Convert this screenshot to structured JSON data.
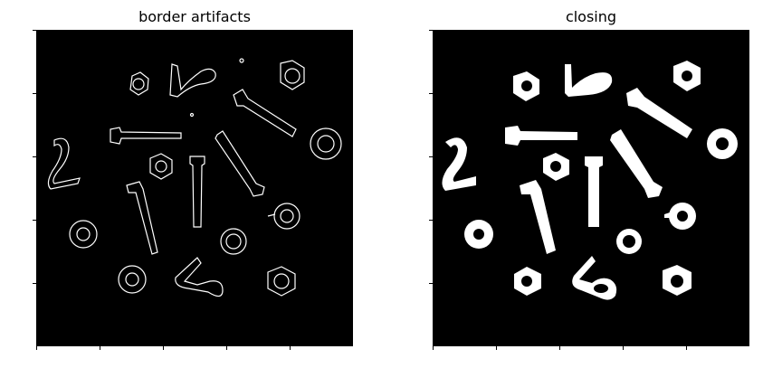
{
  "panels": [
    {
      "title": "border artifacts"
    },
    {
      "title": "closing"
    }
  ],
  "colors": {
    "background": "#000000",
    "foreground": "#ffffff"
  }
}
